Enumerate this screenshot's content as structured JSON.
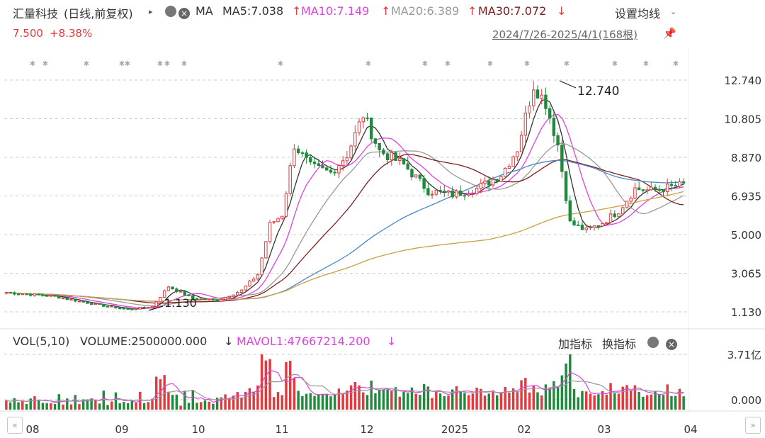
{
  "header": {
    "stock_name": "汇量科技",
    "period_mode": "(日线,前复权)",
    "ma_label": "MA",
    "ma5": "MA5:7.038",
    "ma10": "MA10:7.149",
    "ma20": "MA20:6.389",
    "ma30": "MA30:7.072",
    "settings_label": "设置均线",
    "price": "7.500",
    "change": "+8.38%",
    "date_range": "2024/7/26-2025/4/1(168根)"
  },
  "colors": {
    "up": "#e0393e",
    "down": "#1f8a3b",
    "ma5": "#333333",
    "ma10": "#e040e0",
    "ma20": "#999999",
    "ma30": "#7b1d1d",
    "ma60": "#4a86c8",
    "ma120": "#c8a040",
    "ma250": "#4a86c8"
  },
  "volume_header": {
    "vol": "VOL(5,10)",
    "volume": "VOLUME:2500000.000",
    "mavol": "MAVOL1:47667214.200",
    "add_indicator": "加指标",
    "switch_indicator": "换指标"
  },
  "chart_data": {
    "type": "candlestick",
    "y_ticks": [
      "12.740",
      "10.805",
      "8.870",
      "6.935",
      "5.000",
      "3.065",
      "1.130"
    ],
    "ylim": [
      1.13,
      12.74
    ],
    "volume_ticks": [
      "3.71亿",
      "0.000"
    ],
    "x_ticks": [
      "08",
      "09",
      "10",
      "11",
      "12",
      "2025",
      "02",
      "03",
      "04"
    ],
    "annotations": {
      "high": "12.740",
      "low": "1.130"
    },
    "price_path": [
      [
        0,
        2.1
      ],
      [
        12,
        1.9
      ],
      [
        22,
        1.5
      ],
      [
        30,
        1.25
      ],
      [
        36,
        1.4
      ],
      [
        40,
        2.4
      ],
      [
        46,
        1.8
      ],
      [
        52,
        1.7
      ],
      [
        58,
        2.2
      ],
      [
        62,
        3.0
      ],
      [
        65,
        5.5
      ],
      [
        68,
        6.0
      ],
      [
        71,
        9.5
      ],
      [
        75,
        8.4
      ],
      [
        80,
        8.1
      ],
      [
        84,
        9.0
      ],
      [
        88,
        11.0
      ],
      [
        92,
        9.2
      ],
      [
        98,
        8.5
      ],
      [
        104,
        7.2
      ],
      [
        110,
        7.0
      ],
      [
        116,
        7.3
      ],
      [
        122,
        8.0
      ],
      [
        126,
        9.3
      ],
      [
        130,
        12.5
      ],
      [
        133,
        11.6
      ],
      [
        136,
        9.5
      ],
      [
        139,
        5.6
      ],
      [
        143,
        5.2
      ],
      [
        147,
        5.6
      ],
      [
        151,
        6.2
      ],
      [
        155,
        7.3
      ],
      [
        159,
        7.2
      ],
      [
        167,
        7.5
      ]
    ],
    "candle_count": 168
  }
}
